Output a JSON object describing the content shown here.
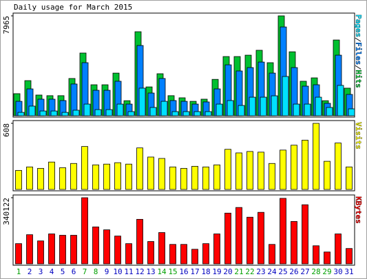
{
  "chart_data": [
    {
      "type": "bar",
      "title": "Daily usage for March 2015",
      "categories": [
        "1",
        "2",
        "3",
        "4",
        "5",
        "6",
        "7",
        "8",
        "9",
        "10",
        "11",
        "12",
        "13",
        "14",
        "15",
        "16",
        "17",
        "18",
        "19",
        "20",
        "21",
        "22",
        "23",
        "24",
        "25",
        "26",
        "27",
        "28",
        "29",
        "30",
        "31"
      ],
      "ylim": [
        0,
        7965
      ],
      "yticks": [
        7965
      ],
      "series": [
        {
          "name": "Hits",
          "color": "#00c030",
          "values": [
            1760,
            2800,
            1650,
            1600,
            1600,
            2970,
            5000,
            2470,
            2470,
            3400,
            1200,
            6700,
            2300,
            3350,
            1600,
            1430,
            1150,
            1320,
            2900,
            4720,
            4720,
            4830,
            5220,
            4230,
            7965,
            5100,
            2750,
            3020,
            1200,
            6040,
            2200
          ]
        },
        {
          "name": "Files",
          "color": "#0080ff",
          "values": [
            1150,
            2140,
            1320,
            1320,
            1210,
            2530,
            4230,
            2030,
            2030,
            2750,
            930,
            5600,
            1810,
            2970,
            1210,
            1150,
            930,
            1100,
            2140,
            4060,
            3570,
            3840,
            4280,
            3400,
            7080,
            3840,
            2360,
            2470,
            990,
            4830,
            1700
          ]
        },
        {
          "name": "Pages",
          "color": "#00e0ff",
          "values": [
            270,
            770,
            380,
            380,
            270,
            440,
            930,
            490,
            490,
            930,
            330,
            2200,
            660,
            1150,
            330,
            330,
            330,
            330,
            930,
            1210,
            820,
            1480,
            1480,
            1590,
            3130,
            930,
            930,
            1480,
            660,
            2420,
            550
          ]
        }
      ]
    },
    {
      "type": "bar",
      "categories": [
        "1",
        "2",
        "3",
        "4",
        "5",
        "6",
        "7",
        "8",
        "9",
        "10",
        "11",
        "12",
        "13",
        "14",
        "15",
        "16",
        "17",
        "18",
        "19",
        "20",
        "21",
        "22",
        "23",
        "24",
        "25",
        "26",
        "27",
        "28",
        "29",
        "30",
        "31"
      ],
      "ylim": [
        0,
        608
      ],
      "yticks": [
        608
      ],
      "series": [
        {
          "name": "Visits",
          "color": "#ffff00",
          "values": [
            175,
            207,
            194,
            252,
            200,
            239,
            395,
            226,
            233,
            246,
            233,
            382,
            298,
            285,
            207,
            194,
            213,
            207,
            226,
            369,
            336,
            349,
            343,
            239,
            362,
            407,
            453,
            608,
            259,
            427,
            207
          ]
        }
      ]
    },
    {
      "type": "bar",
      "categories": [
        "1",
        "2",
        "3",
        "4",
        "5",
        "6",
        "7",
        "8",
        "9",
        "10",
        "11",
        "12",
        "13",
        "14",
        "15",
        "16",
        "17",
        "18",
        "19",
        "20",
        "21",
        "22",
        "23",
        "24",
        "25",
        "26",
        "27",
        "28",
        "29",
        "30",
        "31"
      ],
      "category_colors": [
        "#00a000",
        "#0000c0",
        "#0000c0",
        "#0000c0",
        "#0000c0",
        "#0000c0",
        "#00a000",
        "#00a000",
        "#0000c0",
        "#0000c0",
        "#0000c0",
        "#0000c0",
        "#0000c0",
        "#00a000",
        "#00a000",
        "#0000c0",
        "#0000c0",
        "#0000c0",
        "#0000c0",
        "#0000c0",
        "#00a000",
        "#00a000",
        "#0000c0",
        "#0000c0",
        "#0000c0",
        "#0000c0",
        "#0000c0",
        "#00a000",
        "#00a000",
        "#0000c0",
        "#0000c0"
      ],
      "ylim": [
        0,
        340122
      ],
      "yticks": [
        340122
      ],
      "series": [
        {
          "name": "KBytes",
          "color": "#ff0000",
          "values": [
            104000,
            150000,
            118000,
            154000,
            147000,
            147000,
            340122,
            190000,
            175000,
            143000,
            104000,
            229000,
            115000,
            161000,
            100000,
            100000,
            75000,
            104000,
            154000,
            261000,
            290000,
            240000,
            265000,
            100000,
            337000,
            218000,
            304000,
            93000,
            61000,
            154000,
            79000
          ]
        }
      ]
    }
  ]
}
